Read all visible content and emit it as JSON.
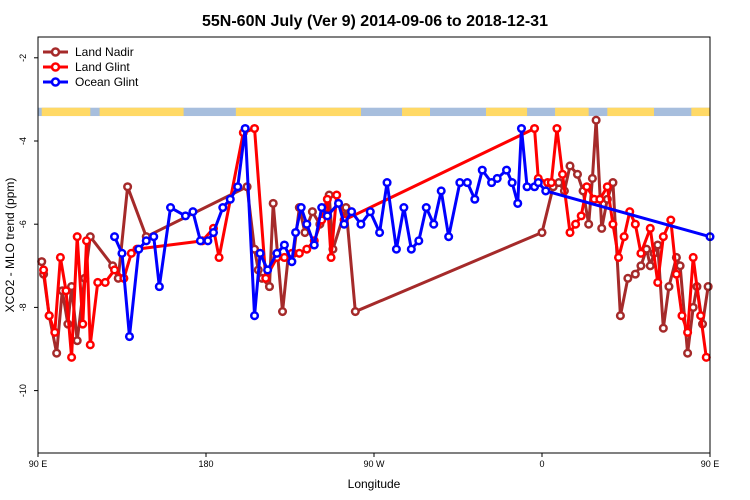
{
  "chart_data": {
    "type": "line",
    "title": "55N-60N July (Ver 9)   2014-09-06 to 2018-12-31",
    "xlabel": "Longitude",
    "ylabel": "XCO2 - MLO trend (ppm)",
    "xlim": [
      90,
      450
    ],
    "ylim": [
      -11.5,
      -1.5
    ],
    "x_ticks": [
      {
        "value": 90,
        "label": "90 E"
      },
      {
        "value": 180,
        "label": "180"
      },
      {
        "value": 270,
        "label": "90 W"
      },
      {
        "value": 360,
        "label": "0"
      },
      {
        "value": 450,
        "label": "90 E"
      },
      {
        "value": 540,
        "label": "180"
      }
    ],
    "y_ticks": [
      {
        "value": -2,
        "label": "-2"
      },
      {
        "value": -4,
        "label": "-4"
      },
      {
        "value": -6,
        "label": "-6"
      },
      {
        "value": -8,
        "label": "-8"
      },
      {
        "value": -10,
        "label": "-10"
      }
    ],
    "legend_position": "top-left",
    "grid": false,
    "landmask": {
      "y_range": [
        -3.4,
        -3.2
      ],
      "land_color": "#ffd966",
      "ocean_color": "#a7bedd",
      "land_segments": [
        [
          92,
          118
        ],
        [
          123,
          168
        ],
        [
          196,
          263
        ],
        [
          285,
          300
        ],
        [
          330,
          352
        ],
        [
          367,
          385
        ],
        [
          395,
          420
        ],
        [
          440,
          452
        ]
      ]
    },
    "series": [
      {
        "name": "Land Nadir",
        "color": "#a52a2a",
        "points": [
          [
            92,
            -6.9
          ],
          [
            93,
            -7.2
          ],
          [
            96,
            -8.2
          ],
          [
            100,
            -9.1
          ],
          [
            103,
            -7.6
          ],
          [
            106,
            -8.4
          ],
          [
            108,
            -7.5
          ],
          [
            111,
            -8.8
          ],
          [
            115,
            -7.3
          ],
          [
            118,
            -6.3
          ],
          [
            130,
            -7.0
          ],
          [
            133,
            -7.3
          ],
          [
            138,
            -5.1
          ],
          [
            148,
            -6.3
          ],
          [
            202,
            -5.1
          ],
          [
            206,
            -6.6
          ],
          [
            208,
            -7.1
          ],
          [
            210,
            -7.3
          ],
          [
            214,
            -7.5
          ],
          [
            216,
            -5.5
          ],
          [
            221,
            -8.1
          ],
          [
            224,
            -6.8
          ],
          [
            227,
            -6.7
          ],
          [
            230,
            -5.6
          ],
          [
            233,
            -6.2
          ],
          [
            237,
            -5.7
          ],
          [
            241,
            -6.0
          ],
          [
            244,
            -5.6
          ],
          [
            246,
            -5.3
          ],
          [
            248,
            -6.6
          ],
          [
            255,
            -5.6
          ],
          [
            260,
            -8.1
          ],
          [
            360,
            -6.2
          ],
          [
            366,
            -5.1
          ],
          [
            369,
            -5.0
          ],
          [
            372,
            -5.2
          ],
          [
            375,
            -4.6
          ],
          [
            379,
            -4.8
          ],
          [
            382,
            -5.2
          ],
          [
            385,
            -6.0
          ],
          [
            387,
            -4.9
          ],
          [
            389,
            -3.5
          ],
          [
            392,
            -6.1
          ],
          [
            395,
            -5.4
          ],
          [
            398,
            -5.0
          ],
          [
            402,
            -8.2
          ],
          [
            406,
            -7.3
          ],
          [
            410,
            -7.2
          ],
          [
            413,
            -7.0
          ],
          [
            416,
            -6.6
          ],
          [
            418,
            -7.0
          ],
          [
            420,
            -6.7
          ],
          [
            422,
            -6.5
          ],
          [
            425,
            -8.5
          ],
          [
            428,
            -7.5
          ],
          [
            432,
            -6.8
          ],
          [
            434,
            -7.0
          ],
          [
            438,
            -9.1
          ],
          [
            441,
            -8.0
          ],
          [
            443,
            -7.5
          ],
          [
            446,
            -8.4
          ],
          [
            449,
            -7.5
          ],
          [
            452,
            -8.1
          ],
          [
            455,
            -6.3
          ],
          [
            458,
            -6.3
          ],
          [
            460,
            -8.1
          ],
          [
            464,
            -7.0
          ],
          [
            470,
            -8.7
          ],
          [
            475,
            -5.1
          ],
          [
            480,
            -7.1
          ]
        ]
      },
      {
        "name": "Land Glint",
        "color": "#ff0000",
        "points": [
          [
            93,
            -7.1
          ],
          [
            96,
            -8.2
          ],
          [
            99,
            -8.6
          ],
          [
            102,
            -6.8
          ],
          [
            105,
            -7.6
          ],
          [
            108,
            -9.2
          ],
          [
            111,
            -6.3
          ],
          [
            114,
            -8.4
          ],
          [
            116,
            -6.4
          ],
          [
            118,
            -8.9
          ],
          [
            122,
            -7.4
          ],
          [
            126,
            -7.4
          ],
          [
            131,
            -7.1
          ],
          [
            136,
            -7.3
          ],
          [
            140,
            -6.7
          ],
          [
            143,
            -6.6
          ],
          [
            178,
            -6.4
          ],
          [
            184,
            -6.1
          ],
          [
            187,
            -6.8
          ],
          [
            200,
            -3.8
          ],
          [
            206,
            -3.7
          ],
          [
            212,
            -7.3
          ],
          [
            218,
            -6.8
          ],
          [
            222,
            -6.8
          ],
          [
            226,
            -6.7
          ],
          [
            230,
            -6.7
          ],
          [
            234,
            -6.6
          ],
          [
            238,
            -6.4
          ],
          [
            242,
            -5.9
          ],
          [
            245,
            -5.4
          ],
          [
            247,
            -6.8
          ],
          [
            250,
            -5.3
          ],
          [
            254,
            -5.9
          ],
          [
            356,
            -3.7
          ],
          [
            358,
            -4.9
          ],
          [
            363,
            -5.0
          ],
          [
            365,
            -5.0
          ],
          [
            368,
            -3.7
          ],
          [
            371,
            -4.8
          ],
          [
            375,
            -6.2
          ],
          [
            378,
            -6.0
          ],
          [
            381,
            -5.8
          ],
          [
            384,
            -5.1
          ],
          [
            388,
            -5.4
          ],
          [
            391,
            -5.4
          ],
          [
            395,
            -5.1
          ],
          [
            398,
            -6.0
          ],
          [
            401,
            -6.8
          ],
          [
            404,
            -6.3
          ],
          [
            407,
            -5.7
          ],
          [
            410,
            -6.0
          ],
          [
            413,
            -6.7
          ],
          [
            418,
            -6.1
          ],
          [
            422,
            -7.4
          ],
          [
            425,
            -6.3
          ],
          [
            429,
            -5.9
          ],
          [
            432,
            -7.2
          ],
          [
            435,
            -8.2
          ],
          [
            438,
            -8.6
          ],
          [
            441,
            -6.8
          ],
          [
            445,
            -8.2
          ],
          [
            448,
            -9.2
          ],
          [
            451,
            -6.3
          ],
          [
            455,
            -8.3
          ],
          [
            458,
            -8.9
          ],
          [
            461,
            -7.6
          ],
          [
            465,
            -7.5
          ],
          [
            468,
            -7.1
          ],
          [
            470,
            -7.2
          ],
          [
            478,
            -7.2
          ],
          [
            483,
            -6.8
          ]
        ]
      },
      {
        "name": "Ocean Glint",
        "color": "#0000ff",
        "points": [
          [
            131,
            -6.3
          ],
          [
            135,
            -6.7
          ],
          [
            139,
            -8.7
          ],
          [
            144,
            -6.6
          ],
          [
            148,
            -6.4
          ],
          [
            152,
            -6.3
          ],
          [
            155,
            -7.5
          ],
          [
            161,
            -5.6
          ],
          [
            169,
            -5.8
          ],
          [
            173,
            -5.7
          ],
          [
            177,
            -6.4
          ],
          [
            181,
            -6.4
          ],
          [
            184,
            -6.2
          ],
          [
            189,
            -5.6
          ],
          [
            193,
            -5.4
          ],
          [
            197,
            -5.1
          ],
          [
            201,
            -3.7
          ],
          [
            206,
            -8.2
          ],
          [
            209,
            -6.7
          ],
          [
            213,
            -7.1
          ],
          [
            218,
            -6.7
          ],
          [
            222,
            -6.5
          ],
          [
            226,
            -6.9
          ],
          [
            228,
            -6.2
          ],
          [
            231,
            -5.6
          ],
          [
            234,
            -6.0
          ],
          [
            238,
            -6.5
          ],
          [
            242,
            -5.6
          ],
          [
            245,
            -5.8
          ],
          [
            251,
            -5.5
          ],
          [
            254,
            -6.0
          ],
          [
            258,
            -5.7
          ],
          [
            263,
            -6.0
          ],
          [
            268,
            -5.7
          ],
          [
            273,
            -6.2
          ],
          [
            277,
            -5.0
          ],
          [
            282,
            -6.6
          ],
          [
            286,
            -5.6
          ],
          [
            290,
            -6.6
          ],
          [
            294,
            -6.4
          ],
          [
            298,
            -5.6
          ],
          [
            302,
            -6.0
          ],
          [
            306,
            -5.2
          ],
          [
            310,
            -6.3
          ],
          [
            316,
            -5.0
          ],
          [
            320,
            -5.0
          ],
          [
            324,
            -5.4
          ],
          [
            328,
            -4.7
          ],
          [
            333,
            -5.0
          ],
          [
            336,
            -4.9
          ],
          [
            341,
            -4.7
          ],
          [
            344,
            -5.0
          ],
          [
            347,
            -5.5
          ],
          [
            349,
            -3.7
          ],
          [
            352,
            -5.1
          ],
          [
            356,
            -5.1
          ],
          [
            358,
            -5.0
          ],
          [
            362,
            -5.2
          ],
          [
            450,
            -6.3
          ],
          [
            453,
            -6.7
          ],
          [
            456,
            -8.7
          ],
          [
            460,
            -6.6
          ],
          [
            463,
            -6.5
          ],
          [
            467,
            -6.3
          ],
          [
            470,
            -6.8
          ],
          [
            474,
            -7.5
          ],
          [
            479,
            -5.6
          ]
        ]
      }
    ]
  }
}
